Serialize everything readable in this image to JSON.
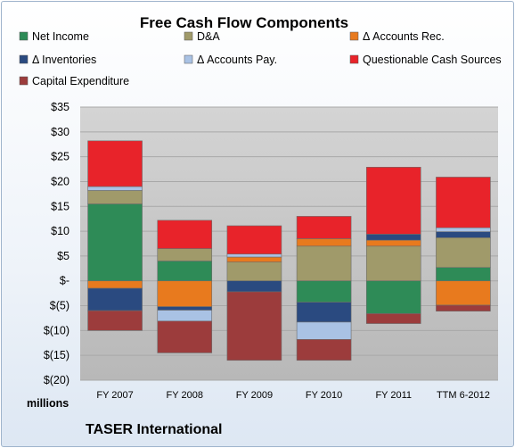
{
  "chart_data": {
    "type": "bar",
    "stacked": true,
    "title": "Free Cash Flow Components",
    "categories": [
      "FY 2007",
      "FY 2008",
      "FY 2009",
      "FY 2010",
      "FY 2011",
      "TTM 6-2012"
    ],
    "ylim": [
      -20,
      35
    ],
    "yticks": [
      35,
      30,
      25,
      20,
      15,
      10,
      5,
      0,
      -5,
      -10,
      -15,
      -20
    ],
    "ytick_labels": [
      "$35",
      "$30",
      "$25",
      "$20",
      "$15",
      "$10",
      "$5",
      "$-",
      "$(5)",
      "$(10)",
      "$(15)",
      "$(20)"
    ],
    "unit_label": "millions",
    "company": "TASER International",
    "legend_position": "top",
    "grid": true,
    "series": [
      {
        "name": "Net Income",
        "color": "#2e8b57",
        "values": [
          15.5,
          4.0,
          0,
          -4.3,
          -6.6,
          2.7
        ]
      },
      {
        "name": "D&A",
        "color": "#a09a6a",
        "values": [
          2.7,
          2.5,
          3.8,
          7.0,
          7.0,
          6.0
        ]
      },
      {
        "name": "Δ Accounts Rec.",
        "color": "#e87a1e",
        "values": [
          -1.5,
          -5.2,
          1.0,
          1.5,
          1.2,
          -4.9
        ]
      },
      {
        "name": "Δ Inventories",
        "color": "#2a4a80",
        "values": [
          -4.5,
          -0.7,
          -2.2,
          -4.0,
          1.2,
          1.2
        ]
      },
      {
        "name": "Δ Accounts Pay.",
        "color": "#a9c2e4",
        "values": [
          0.8,
          -2.2,
          0.6,
          -3.5,
          0,
          0.8
        ]
      },
      {
        "name": "Questionable Cash Sources",
        "color": "#e8232a",
        "values": [
          9.2,
          5.7,
          5.7,
          4.5,
          13.5,
          10.2
        ]
      },
      {
        "name": "Capital Expenditure",
        "color": "#9c3c3c",
        "values": [
          -4.0,
          -6.4,
          -13.8,
          -4.2,
          -2.0,
          -1.2
        ]
      }
    ]
  }
}
